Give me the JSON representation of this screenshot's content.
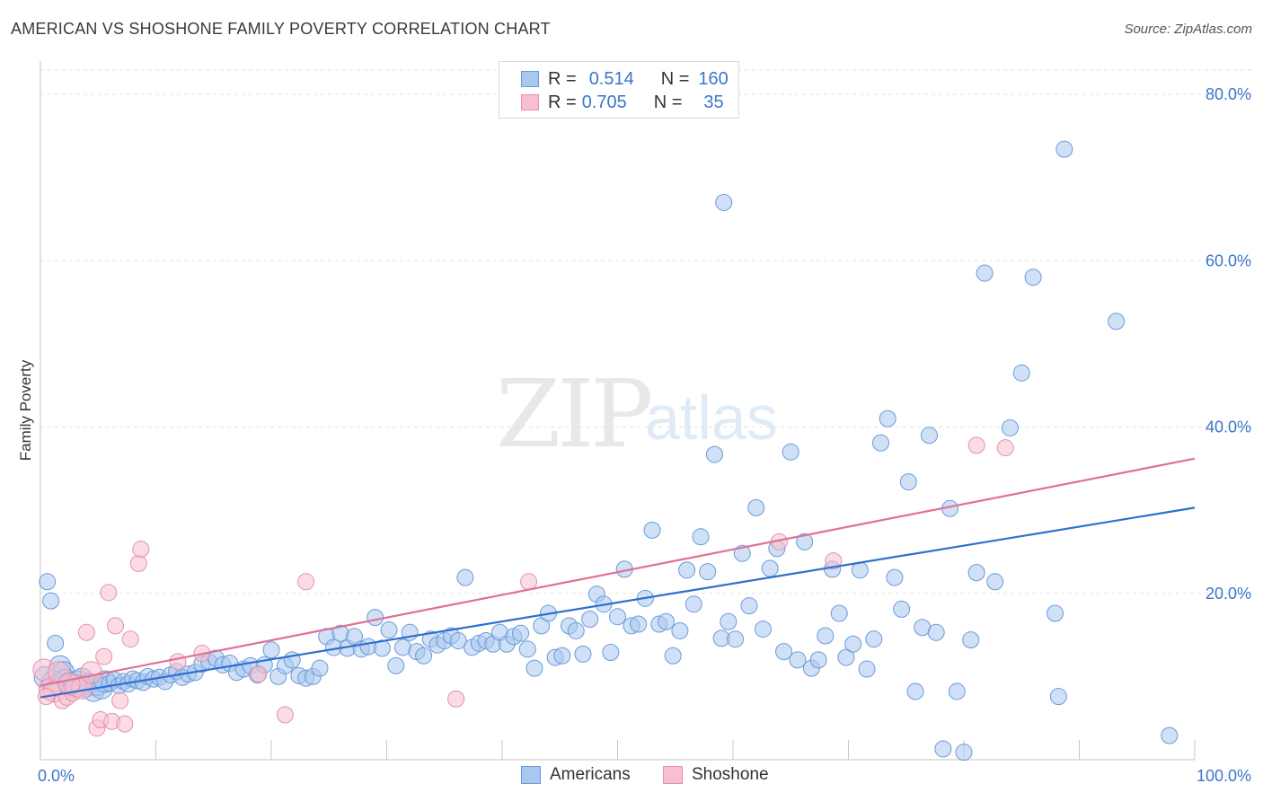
{
  "header": {
    "title": "AMERICAN VS SHOSHONE FAMILY POVERTY CORRELATION CHART",
    "source": "Source: ZipAtlas.com"
  },
  "watermark": {
    "zip": "ZIP",
    "atlas": "atlas"
  },
  "legend": {
    "r_label": "R =",
    "n_label": "N =",
    "rows": [
      {
        "r": "0.514",
        "n": "160",
        "color": "#a9c8f0",
        "border": "#6a9ad8"
      },
      {
        "r": "0.705",
        "n": "35",
        "color": "#f7bfd0",
        "border": "#e590ab"
      }
    ]
  },
  "bottom_legend": {
    "items": [
      {
        "label": "Americans",
        "color": "#a9c8f0",
        "border": "#6a9ad8"
      },
      {
        "label": "Shoshone",
        "color": "#f7bfd0",
        "border": "#e590ab"
      }
    ]
  },
  "chart_data": {
    "type": "scatter",
    "title": "AMERICAN VS SHOSHONE FAMILY POVERTY CORRELATION CHART",
    "xlabel": "",
    "ylabel": "Family Poverty",
    "xlim": [
      0,
      100
    ],
    "ylim": [
      0,
      84
    ],
    "x_tick_labels": [
      "0.0%",
      "100.0%"
    ],
    "y_ticks": [
      20,
      40,
      60,
      80
    ],
    "y_tick_labels": [
      "20.0%",
      "40.0%",
      "60.0%",
      "80.0%"
    ],
    "grid": true,
    "series": [
      {
        "name": "Americans",
        "color": "#a9c8f0",
        "border": "#6a9ad8",
        "line_color": "#2f6fd0",
        "trend": {
          "x": [
            0,
            100
          ],
          "y": [
            7.5,
            30.3
          ]
        },
        "points": [
          [
            0.6,
            21.4
          ],
          [
            0.9,
            19.1
          ],
          [
            1.3,
            14.0
          ],
          [
            1.7,
            11.2
          ],
          [
            2.0,
            10.5
          ],
          [
            2.2,
            9.6
          ],
          [
            2.5,
            9.2
          ],
          [
            2.8,
            9.0
          ],
          [
            3.0,
            8.7
          ],
          [
            3.3,
            9.4
          ],
          [
            3.6,
            9.7
          ],
          [
            3.9,
            8.8
          ],
          [
            4.2,
            9.1
          ],
          [
            4.6,
            8.3
          ],
          [
            4.9,
            9.0
          ],
          [
            5.3,
            8.6
          ],
          [
            5.6,
            9.4
          ],
          [
            6.0,
            9.2
          ],
          [
            6.4,
            9.6
          ],
          [
            6.8,
            8.9
          ],
          [
            7.2,
            9.4
          ],
          [
            7.6,
            9.1
          ],
          [
            8.0,
            9.7
          ],
          [
            8.4,
            9.5
          ],
          [
            8.9,
            9.3
          ],
          [
            9.3,
            10.0
          ],
          [
            9.8,
            9.7
          ],
          [
            10.3,
            9.9
          ],
          [
            10.8,
            9.4
          ],
          [
            11.3,
            10.2
          ],
          [
            11.8,
            10.6
          ],
          [
            12.3,
            9.9
          ],
          [
            12.8,
            10.3
          ],
          [
            13.4,
            10.5
          ],
          [
            14.0,
            11.5
          ],
          [
            14.6,
            11.8
          ],
          [
            15.2,
            12.2
          ],
          [
            15.8,
            11.4
          ],
          [
            16.4,
            11.6
          ],
          [
            17.0,
            10.5
          ],
          [
            17.6,
            10.9
          ],
          [
            18.2,
            11.3
          ],
          [
            18.8,
            10.2
          ],
          [
            19.4,
            11.4
          ],
          [
            20.0,
            13.2
          ],
          [
            20.6,
            10.0
          ],
          [
            21.2,
            11.3
          ],
          [
            21.8,
            12.0
          ],
          [
            22.4,
            10.1
          ],
          [
            23.0,
            9.8
          ],
          [
            23.6,
            10.0
          ],
          [
            24.2,
            11.0
          ],
          [
            24.8,
            14.8
          ],
          [
            25.4,
            13.5
          ],
          [
            26.0,
            15.2
          ],
          [
            26.6,
            13.4
          ],
          [
            27.2,
            14.8
          ],
          [
            27.8,
            13.3
          ],
          [
            28.4,
            13.6
          ],
          [
            29.0,
            17.1
          ],
          [
            29.6,
            13.4
          ],
          [
            30.2,
            15.6
          ],
          [
            30.8,
            11.3
          ],
          [
            31.4,
            13.5
          ],
          [
            32.0,
            15.3
          ],
          [
            32.6,
            13.0
          ],
          [
            33.2,
            12.5
          ],
          [
            33.8,
            14.5
          ],
          [
            34.4,
            13.8
          ],
          [
            35.0,
            14.3
          ],
          [
            35.6,
            14.9
          ],
          [
            36.2,
            14.3
          ],
          [
            36.8,
            21.9
          ],
          [
            37.4,
            13.5
          ],
          [
            38.0,
            14.0
          ],
          [
            38.6,
            14.3
          ],
          [
            39.2,
            13.9
          ],
          [
            39.8,
            15.3
          ],
          [
            40.4,
            13.9
          ],
          [
            41.0,
            14.8
          ],
          [
            41.6,
            15.2
          ],
          [
            42.2,
            13.3
          ],
          [
            42.8,
            11.0
          ],
          [
            43.4,
            16.1
          ],
          [
            44.0,
            17.6
          ],
          [
            44.6,
            12.3
          ],
          [
            45.2,
            12.5
          ],
          [
            45.8,
            16.1
          ],
          [
            46.4,
            15.5
          ],
          [
            47.0,
            12.7
          ],
          [
            47.6,
            16.9
          ],
          [
            48.2,
            19.9
          ],
          [
            48.8,
            18.7
          ],
          [
            49.4,
            12.9
          ],
          [
            50.0,
            17.2
          ],
          [
            50.6,
            22.9
          ],
          [
            51.2,
            16.1
          ],
          [
            51.8,
            16.3
          ],
          [
            52.4,
            19.4
          ],
          [
            53.0,
            27.6
          ],
          [
            53.6,
            16.3
          ],
          [
            54.2,
            16.6
          ],
          [
            54.8,
            12.5
          ],
          [
            55.4,
            15.5
          ],
          [
            56.0,
            22.8
          ],
          [
            56.6,
            18.7
          ],
          [
            57.2,
            26.8
          ],
          [
            57.8,
            22.6
          ],
          [
            58.4,
            36.7
          ],
          [
            59.0,
            14.6
          ],
          [
            59.6,
            16.6
          ],
          [
            60.2,
            14.5
          ],
          [
            60.8,
            24.8
          ],
          [
            61.4,
            18.5
          ],
          [
            62.0,
            30.3
          ],
          [
            62.6,
            15.7
          ],
          [
            63.2,
            23.0
          ],
          [
            63.8,
            25.4
          ],
          [
            64.4,
            13.0
          ],
          [
            65.0,
            37.0
          ],
          [
            65.6,
            12.0
          ],
          [
            66.2,
            26.2
          ],
          [
            66.8,
            11.0
          ],
          [
            67.4,
            12.0
          ],
          [
            68.0,
            14.9
          ],
          [
            68.6,
            22.9
          ],
          [
            69.2,
            17.6
          ],
          [
            69.8,
            12.3
          ],
          [
            70.4,
            13.9
          ],
          [
            71.0,
            22.8
          ],
          [
            71.6,
            10.9
          ],
          [
            72.2,
            14.5
          ],
          [
            72.8,
            38.1
          ],
          [
            73.4,
            41.0
          ],
          [
            74.0,
            21.9
          ],
          [
            74.6,
            18.1
          ],
          [
            75.2,
            33.4
          ],
          [
            75.8,
            8.2
          ],
          [
            76.4,
            15.9
          ],
          [
            77.0,
            39.0
          ],
          [
            77.6,
            15.3
          ],
          [
            78.2,
            1.3
          ],
          [
            78.8,
            30.2
          ],
          [
            79.4,
            8.2
          ],
          [
            80.0,
            0.9
          ],
          [
            80.6,
            14.4
          ],
          [
            81.8,
            58.5
          ],
          [
            59.2,
            67.0
          ],
          [
            88.7,
            73.4
          ],
          [
            81.1,
            22.5
          ],
          [
            82.7,
            21.4
          ],
          [
            84.0,
            39.9
          ],
          [
            85.0,
            46.5
          ],
          [
            86.0,
            58.0
          ],
          [
            87.9,
            17.6
          ],
          [
            88.2,
            7.6
          ],
          [
            93.2,
            52.7
          ],
          [
            97.8,
            2.9
          ],
          [
            0.4,
            9.9
          ],
          [
            1.1,
            9.4
          ]
        ]
      },
      {
        "name": "Shoshone",
        "color": "#f7bfd0",
        "border": "#e590ab",
        "line_color": "#e07097",
        "trend": {
          "x": [
            0,
            100
          ],
          "y": [
            8.9,
            36.2
          ]
        },
        "points": [
          [
            0.3,
            10.8
          ],
          [
            0.8,
            8.5
          ],
          [
            1.2,
            8.2
          ],
          [
            1.6,
            10.5
          ],
          [
            1.9,
            7.1
          ],
          [
            2.3,
            7.5
          ],
          [
            2.8,
            8.0
          ],
          [
            3.1,
            8.9
          ],
          [
            3.6,
            8.6
          ],
          [
            4.0,
            15.3
          ],
          [
            4.4,
            10.5
          ],
          [
            4.9,
            3.8
          ],
          [
            5.2,
            4.8
          ],
          [
            5.5,
            12.4
          ],
          [
            5.9,
            20.1
          ],
          [
            6.2,
            4.6
          ],
          [
            6.5,
            16.1
          ],
          [
            6.9,
            7.1
          ],
          [
            7.3,
            4.3
          ],
          [
            7.8,
            14.5
          ],
          [
            8.5,
            23.6
          ],
          [
            8.7,
            25.3
          ],
          [
            11.9,
            11.8
          ],
          [
            14.0,
            12.8
          ],
          [
            18.9,
            10.3
          ],
          [
            21.2,
            5.4
          ],
          [
            23.0,
            21.4
          ],
          [
            36.0,
            7.3
          ],
          [
            42.3,
            21.4
          ],
          [
            64.0,
            26.2
          ],
          [
            68.7,
            23.9
          ],
          [
            81.1,
            37.8
          ],
          [
            83.6,
            37.5
          ],
          [
            0.5,
            7.6
          ],
          [
            2.5,
            9.1
          ]
        ]
      }
    ]
  }
}
